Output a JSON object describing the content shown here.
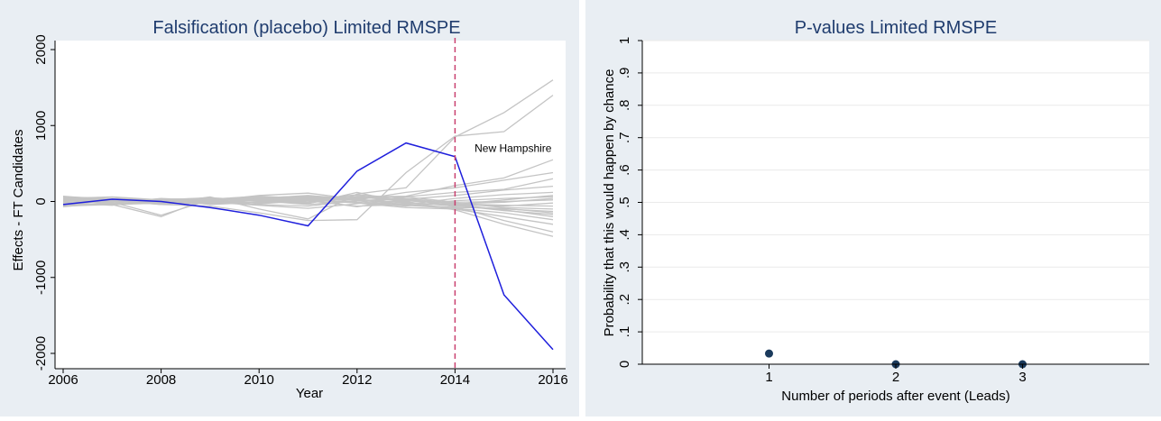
{
  "chart_data": [
    {
      "type": "line",
      "title": "Falsification (placebo) Limited RMSPE",
      "xlabel": "Year",
      "ylabel": "Effects - FT Candidates",
      "xlim": [
        2006,
        2016
      ],
      "ylim": [
        -2000,
        2000
      ],
      "x_ticks": [
        "2006",
        "2008",
        "2010",
        "2012",
        "2014",
        "2016"
      ],
      "y_ticks": [
        "-2000",
        "-1000",
        "0",
        "1000",
        "2000"
      ],
      "reference_line": {
        "x": 2014,
        "style": "dashed",
        "color": "#c9406f"
      },
      "annotation": {
        "text": "New Hampshire",
        "x": 2014.4,
        "y": 650
      },
      "highlight_color": "#1f1fdc",
      "placebo_color": "#c4c4c4",
      "grid": false,
      "highlight": {
        "name": "New Hampshire",
        "x": [
          2006,
          2007,
          2008,
          2009,
          2010,
          2011,
          2012,
          2013,
          2014,
          2015,
          2016
        ],
        "values": [
          -40,
          30,
          0,
          -80,
          -180,
          -320,
          400,
          770,
          590,
          -1230,
          -1950
        ]
      },
      "placebos": [
        [
          -50,
          20,
          -40,
          -60,
          -150,
          -250,
          -240,
          380,
          860,
          920,
          1400
        ],
        [
          20,
          10,
          -30,
          60,
          -100,
          -230,
          100,
          180,
          850,
          1170,
          1600
        ],
        [
          40,
          60,
          20,
          -20,
          30,
          10,
          60,
          70,
          210,
          310,
          550
        ],
        [
          -30,
          -40,
          -200,
          50,
          10,
          40,
          20,
          120,
          180,
          280,
          380
        ],
        [
          70,
          20,
          30,
          -10,
          -50,
          -90,
          -30,
          60,
          120,
          160,
          300
        ],
        [
          -70,
          -10,
          -180,
          20,
          60,
          20,
          -70,
          30,
          80,
          150,
          200
        ],
        [
          30,
          -20,
          40,
          10,
          80,
          110,
          30,
          -40,
          40,
          90,
          120
        ],
        [
          10,
          30,
          -10,
          40,
          20,
          -30,
          120,
          -20,
          -40,
          20,
          80
        ],
        [
          -20,
          0,
          10,
          -30,
          50,
          70,
          -10,
          -60,
          10,
          40,
          60
        ],
        [
          60,
          40,
          20,
          10,
          -20,
          30,
          60,
          20,
          -30,
          -10,
          40
        ],
        [
          -40,
          -30,
          -20,
          20,
          30,
          60,
          40,
          60,
          -10,
          0,
          20
        ],
        [
          20,
          -20,
          30,
          -40,
          -10,
          20,
          -20,
          -30,
          -40,
          -60,
          -20
        ],
        [
          -10,
          10,
          -40,
          0,
          40,
          30,
          80,
          10,
          -30,
          -50,
          -60
        ],
        [
          50,
          30,
          -10,
          30,
          10,
          -40,
          10,
          40,
          -20,
          -80,
          -100
        ],
        [
          -60,
          -40,
          -20,
          -10,
          60,
          50,
          20,
          -10,
          -60,
          -100,
          -130
        ],
        [
          40,
          10,
          20,
          50,
          -30,
          10,
          -60,
          -40,
          -80,
          -90,
          -150
        ],
        [
          0,
          -20,
          -30,
          20,
          40,
          80,
          30,
          -20,
          -50,
          -120,
          -170
        ],
        [
          -30,
          20,
          30,
          -20,
          20,
          -10,
          50,
          30,
          -40,
          -110,
          -200
        ],
        [
          30,
          40,
          10,
          0,
          -40,
          -60,
          10,
          -50,
          -90,
          -150,
          -240
        ],
        [
          -50,
          -30,
          0,
          30,
          70,
          40,
          -20,
          -80,
          -100,
          -200,
          -300
        ],
        [
          60,
          0,
          -20,
          -30,
          0,
          20,
          90,
          40,
          -70,
          -250,
          -400
        ],
        [
          -20,
          -50,
          30,
          40,
          20,
          -20,
          60,
          0,
          -110,
          -300,
          -460
        ]
      ]
    },
    {
      "type": "scatter",
      "title": "P-values Limited RMSPE",
      "xlabel": "Number of periods after event (Leads)",
      "ylabel": "Probability that this would happen by chance",
      "xlim": [
        0,
        4
      ],
      "ylim": [
        0,
        1
      ],
      "x_ticks": [
        "1",
        "2",
        "3"
      ],
      "y_ticks": [
        "0",
        ".1",
        ".2",
        ".3",
        ".4",
        ".5",
        ".6",
        ".7",
        ".8",
        ".9",
        "1"
      ],
      "grid": true,
      "marker_color": "#1a3a5c",
      "points": [
        {
          "x": 1,
          "y": 0.033
        },
        {
          "x": 2,
          "y": 0
        },
        {
          "x": 3,
          "y": 0
        }
      ]
    }
  ],
  "colors": {
    "outer_background": "#e9eef3",
    "plot_background": "#ffffff",
    "title_color": "#1f3c6e",
    "axis_color": "#000000"
  }
}
